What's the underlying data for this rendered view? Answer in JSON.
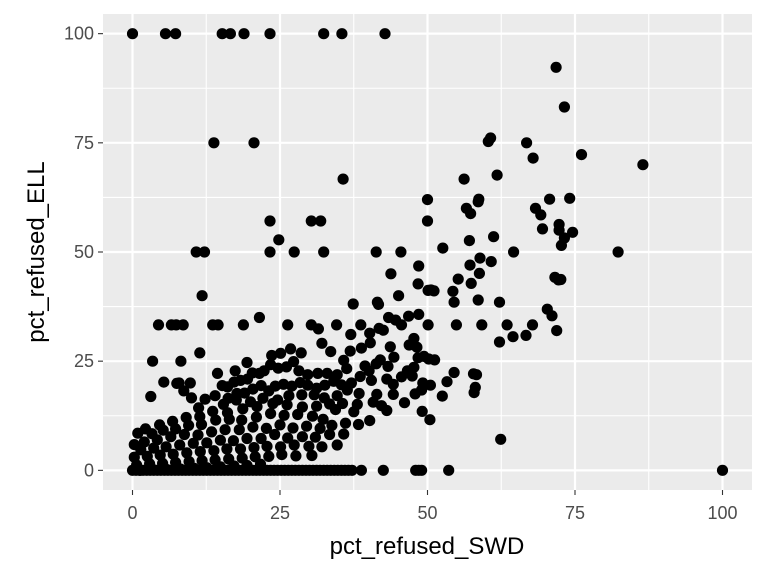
{
  "chart_data": {
    "type": "scatter",
    "title": "",
    "xlabel": "pct_refused_SWD",
    "ylabel": "pct_refused_ELL",
    "xlim": [
      -5,
      105
    ],
    "ylim": [
      -4.5,
      104.5
    ],
    "xticks": [
      0,
      25,
      50,
      75,
      100
    ],
    "xtick_labels": [
      "0",
      "25",
      "50",
      "75",
      "100"
    ],
    "yticks": [
      0,
      25,
      50,
      75,
      100
    ],
    "ytick_labels": [
      "0",
      "25",
      "50",
      "75",
      "100"
    ],
    "grid": true,
    "legend": "none",
    "colors": {
      "panel": "#ebebeb",
      "grid": "#ffffff",
      "point": "#000000",
      "tick": "#4d4d4d"
    },
    "points": [
      [
        0,
        100
      ],
      [
        5.6,
        100
      ],
      [
        7.3,
        100
      ],
      [
        15.2,
        100
      ],
      [
        16.6,
        100
      ],
      [
        18.9,
        100
      ],
      [
        23.3,
        100
      ],
      [
        32.4,
        100
      ],
      [
        35.5,
        100
      ],
      [
        42.8,
        100
      ],
      [
        71.8,
        92.3
      ],
      [
        73.2,
        83.2
      ],
      [
        13.8,
        75
      ],
      [
        20.6,
        75
      ],
      [
        60.3,
        75.3
      ],
      [
        60.7,
        76.1
      ],
      [
        66.8,
        75
      ],
      [
        67.9,
        71.5
      ],
      [
        76.1,
        72.3
      ],
      [
        86.5,
        70
      ],
      [
        35.7,
        66.7
      ],
      [
        56.2,
        66.7
      ],
      [
        61.8,
        67.6
      ],
      [
        56.6,
        60
      ],
      [
        58.6,
        61.5
      ],
      [
        58.7,
        62.1
      ],
      [
        50,
        62
      ],
      [
        70.7,
        62.1
      ],
      [
        74.1,
        62.3
      ],
      [
        68.3,
        60
      ],
      [
        69.2,
        58.5
      ],
      [
        73.2,
        53.2
      ],
      [
        57.3,
        58.8
      ],
      [
        72.3,
        56.3
      ],
      [
        72.3,
        55
      ],
      [
        69.5,
        55.3
      ],
      [
        74.6,
        54.5
      ],
      [
        23.3,
        57.1
      ],
      [
        30.3,
        57.1
      ],
      [
        31.9,
        57.1
      ],
      [
        50,
        57.1
      ],
      [
        72.7,
        51.5
      ],
      [
        12.2,
        50
      ],
      [
        10.8,
        50
      ],
      [
        23.3,
        50
      ],
      [
        27.4,
        50
      ],
      [
        32.4,
        50
      ],
      [
        41.3,
        50
      ],
      [
        45.5,
        50
      ],
      [
        52.6,
        50.9
      ],
      [
        57.1,
        52.6
      ],
      [
        61.2,
        53.5
      ],
      [
        64.6,
        50
      ],
      [
        82.3,
        50
      ],
      [
        24.8,
        52.8
      ],
      [
        60.8,
        47.8
      ],
      [
        58.9,
        48.6
      ],
      [
        57.2,
        47
      ],
      [
        58.8,
        45.1
      ],
      [
        43.8,
        45
      ],
      [
        48.5,
        46.8
      ],
      [
        71.6,
        44.2
      ],
      [
        72.2,
        43.6
      ],
      [
        72.6,
        43.7
      ],
      [
        55.2,
        43.8
      ],
      [
        57.4,
        42.8
      ],
      [
        54.3,
        41
      ],
      [
        48.4,
        42.7
      ],
      [
        50.1,
        41.2
      ],
      [
        50.6,
        41.3
      ],
      [
        51.1,
        41.1
      ],
      [
        45.1,
        40
      ],
      [
        11.8,
        40
      ],
      [
        62.2,
        38.5
      ],
      [
        54.5,
        38.5
      ],
      [
        58.6,
        39
      ],
      [
        41.5,
        38.5
      ],
      [
        41.7,
        38
      ],
      [
        37.4,
        38.1
      ],
      [
        70.3,
        36.9
      ],
      [
        71.1,
        35.4
      ],
      [
        21.5,
        35
      ],
      [
        46.8,
        35.3
      ],
      [
        48.5,
        35.7
      ],
      [
        44.6,
        34.4
      ],
      [
        43.4,
        35
      ],
      [
        41.8,
        32.5
      ],
      [
        42.5,
        32.1
      ],
      [
        45.6,
        33.3
      ],
      [
        50.1,
        33.3
      ],
      [
        54.9,
        33.3
      ],
      [
        59.2,
        33.3
      ],
      [
        63.5,
        33.3
      ],
      [
        67.8,
        33.3
      ],
      [
        71.9,
        32
      ],
      [
        64.5,
        30.6
      ],
      [
        62.2,
        29.4
      ],
      [
        66.7,
        30.9
      ],
      [
        38.7,
        33.3
      ],
      [
        40.2,
        31.4
      ],
      [
        37,
        31.1
      ],
      [
        34.6,
        33.3
      ],
      [
        31.5,
        32.4
      ],
      [
        30.3,
        33.3
      ],
      [
        26.3,
        33.3
      ],
      [
        18.8,
        33.3
      ],
      [
        13.6,
        33.3
      ],
      [
        14.5,
        33.3
      ],
      [
        8.6,
        33.3
      ],
      [
        6.6,
        33.3
      ],
      [
        4.4,
        33.3
      ],
      [
        7.4,
        33.3
      ],
      [
        40.3,
        29.2
      ],
      [
        43.7,
        28.3
      ],
      [
        46.9,
        28.7
      ],
      [
        48.2,
        28.2
      ],
      [
        47.7,
        30.2
      ],
      [
        38.8,
        28
      ],
      [
        36.9,
        27.3
      ],
      [
        35.8,
        25.2
      ],
      [
        33.6,
        27.2
      ],
      [
        32.1,
        29.1
      ],
      [
        28.6,
        26.9
      ],
      [
        26.8,
        27.8
      ],
      [
        25.1,
        26.8
      ],
      [
        23.6,
        26.3
      ],
      [
        23.4,
        24.2
      ],
      [
        19.4,
        24.7
      ],
      [
        17.4,
        22.8
      ],
      [
        14.4,
        22.2
      ],
      [
        11.4,
        26.9
      ],
      [
        3.4,
        25
      ],
      [
        8.2,
        25
      ],
      [
        42,
        25.3
      ],
      [
        44.3,
        25.9
      ],
      [
        48.4,
        25.8
      ],
      [
        49.4,
        26.1
      ],
      [
        50.2,
        25.5
      ],
      [
        51.2,
        25.3
      ],
      [
        47.7,
        23.6
      ],
      [
        46.6,
        22.8
      ],
      [
        43.3,
        23.8
      ],
      [
        41.3,
        24.4
      ],
      [
        40.1,
        22.8
      ],
      [
        39.4,
        23.9
      ],
      [
        36.3,
        23.3
      ],
      [
        34.7,
        21.9
      ],
      [
        33,
        22.2
      ],
      [
        31.4,
        22.2
      ],
      [
        29.7,
        21.9
      ],
      [
        28.2,
        22.8
      ],
      [
        27.3,
        24.9
      ],
      [
        26.1,
        23.7
      ],
      [
        24.7,
        23.4
      ],
      [
        22.3,
        22.8
      ],
      [
        21.5,
        22.2
      ],
      [
        20.3,
        22.3
      ],
      [
        19.5,
        20.9
      ],
      [
        18.3,
        20.6
      ],
      [
        17.2,
        20.2
      ],
      [
        16.1,
        19.1
      ],
      [
        15.2,
        19.4
      ],
      [
        14,
        17.1
      ],
      [
        12.3,
        16.3
      ],
      [
        11.2,
        14.3
      ],
      [
        10,
        16.6
      ],
      [
        8.7,
        18.2
      ],
      [
        7.5,
        19.9
      ],
      [
        5.3,
        20.2
      ],
      [
        3.1,
        16.9
      ],
      [
        9.8,
        20
      ],
      [
        7.9,
        20
      ],
      [
        57.8,
        22.1
      ],
      [
        58.3,
        21.9
      ],
      [
        53.3,
        20.3
      ],
      [
        54.5,
        22.4
      ],
      [
        49.2,
        20
      ],
      [
        47.4,
        21.6
      ],
      [
        45.6,
        21.4
      ],
      [
        44.2,
        19.7
      ],
      [
        43.1,
        20.9
      ],
      [
        40.5,
        20.6
      ],
      [
        38.6,
        21.5
      ],
      [
        37.1,
        20
      ],
      [
        35.4,
        19.6
      ],
      [
        34.1,
        20.4
      ],
      [
        32.6,
        19.5
      ],
      [
        31.2,
        18.8
      ],
      [
        29.7,
        19.5
      ],
      [
        28.4,
        20.1
      ],
      [
        27,
        19.3
      ],
      [
        25.6,
        19.7
      ],
      [
        24.2,
        19.3
      ],
      [
        23.1,
        18.2
      ],
      [
        21.8,
        19.4
      ],
      [
        20.4,
        18.6
      ],
      [
        19,
        17.7
      ],
      [
        17.7,
        17.6
      ],
      [
        16.2,
        16.5
      ],
      [
        57.9,
        17.8
      ],
      [
        58.1,
        19
      ],
      [
        47.9,
        17.5
      ],
      [
        49,
        18.4
      ],
      [
        50.5,
        19.5
      ],
      [
        52.5,
        17
      ],
      [
        44.2,
        17.4
      ],
      [
        41.4,
        17.4
      ],
      [
        38.4,
        17.6
      ],
      [
        36.4,
        18.4
      ],
      [
        34.7,
        17.1
      ],
      [
        32.5,
        16.6
      ],
      [
        30.8,
        17.3
      ],
      [
        28.7,
        17.3
      ],
      [
        26.5,
        17.1
      ],
      [
        24.6,
        16.1
      ],
      [
        22.1,
        16.5
      ],
      [
        20,
        15.7
      ],
      [
        17.6,
        16.1
      ],
      [
        15.4,
        15.1
      ],
      [
        46.1,
        15.5
      ],
      [
        40.8,
        15.6
      ],
      [
        38.1,
        15.1
      ],
      [
        35.6,
        15.3
      ],
      [
        33.4,
        15.2
      ],
      [
        31.2,
        14.7
      ],
      [
        28.8,
        14.5
      ],
      [
        26.2,
        15
      ],
      [
        23.8,
        15.3
      ],
      [
        21.1,
        14.6
      ],
      [
        18.7,
        14.1
      ],
      [
        16.1,
        13.2
      ],
      [
        13.6,
        13.5
      ],
      [
        11.4,
        12.3
      ],
      [
        9.1,
        12.1
      ],
      [
        6.8,
        11.2
      ],
      [
        4.6,
        10.4
      ],
      [
        2.2,
        9.5
      ],
      [
        0.9,
        8.5
      ],
      [
        50.4,
        11.6
      ],
      [
        49.1,
        13.5
      ],
      [
        43.1,
        13.7
      ],
      [
        42.2,
        14.8
      ],
      [
        37.5,
        13.4
      ],
      [
        34.4,
        13.9
      ],
      [
        32.3,
        11.7
      ],
      [
        30.5,
        12.4
      ],
      [
        28,
        12.8
      ],
      [
        25.7,
        12.6
      ],
      [
        23.4,
        13
      ],
      [
        21,
        12.2
      ],
      [
        18.5,
        11.5
      ],
      [
        16.4,
        11.7
      ],
      [
        14.1,
        11.5
      ],
      [
        11.7,
        10.5
      ],
      [
        9.5,
        10.3
      ],
      [
        7.3,
        9.5
      ],
      [
        5.2,
        9.2
      ],
      [
        3.3,
        8.4
      ],
      [
        36.1,
        10.8
      ],
      [
        38.3,
        10.5
      ],
      [
        40.2,
        11.4
      ],
      [
        33.8,
        10.3
      ],
      [
        31.8,
        9.6
      ],
      [
        29.5,
        10.1
      ],
      [
        27.2,
        9.7
      ],
      [
        25,
        10.4
      ],
      [
        22.7,
        9.6
      ],
      [
        20.4,
        9.9
      ],
      [
        18.1,
        9.3
      ],
      [
        15.7,
        9.3
      ],
      [
        13.4,
        8.8
      ],
      [
        11.1,
        8.1
      ],
      [
        8.8,
        8.2
      ],
      [
        6.5,
        7.7
      ],
      [
        4.2,
        7
      ],
      [
        2,
        6.5
      ],
      [
        0.3,
        5.9
      ],
      [
        62.4,
        7.1
      ],
      [
        35.8,
        8.3
      ],
      [
        33.4,
        8.2
      ],
      [
        31,
        7.6
      ],
      [
        28.8,
        7.7
      ],
      [
        26.3,
        7.4
      ],
      [
        24.1,
        8.2
      ],
      [
        21.8,
        7.3
      ],
      [
        19.4,
        7.3
      ],
      [
        17.1,
        6.8
      ],
      [
        14.9,
        6.9
      ],
      [
        12.6,
        6.3
      ],
      [
        10.3,
        6.2
      ],
      [
        8,
        5.8
      ],
      [
        5.7,
        5.4
      ],
      [
        3.6,
        5.1
      ],
      [
        1.4,
        4.7
      ],
      [
        34.7,
        5.8
      ],
      [
        32.1,
        5.4
      ],
      [
        29.9,
        5.5
      ],
      [
        27.4,
        5.8
      ],
      [
        25.1,
        5.4
      ],
      [
        22.8,
        5.5
      ],
      [
        20.6,
        5.2
      ],
      [
        18.3,
        4.9
      ],
      [
        16,
        4.9
      ],
      [
        13.8,
        4.5
      ],
      [
        11.5,
        4.3
      ],
      [
        9.2,
        4
      ],
      [
        6.9,
        3.7
      ],
      [
        4.7,
        3.5
      ],
      [
        2.5,
        3.2
      ],
      [
        0.3,
        3
      ],
      [
        30.4,
        3.4
      ],
      [
        27.7,
        3.3
      ],
      [
        25.3,
        3.6
      ],
      [
        23.1,
        3.2
      ],
      [
        20.8,
        3.1
      ],
      [
        18.6,
        2.8
      ],
      [
        16.3,
        2.6
      ],
      [
        14,
        2.4
      ],
      [
        11.8,
        2.2
      ],
      [
        9.6,
        2
      ],
      [
        7.3,
        1.8
      ],
      [
        5.1,
        1.6
      ],
      [
        2.9,
        1.5
      ],
      [
        0.7,
        1.2
      ],
      [
        21.7,
        1.4
      ],
      [
        19.4,
        1.1
      ],
      [
        17.2,
        1
      ],
      [
        14.9,
        0.8
      ],
      [
        12.6,
        0.6
      ],
      [
        10.4,
        0.5
      ],
      [
        8.1,
        0.3
      ],
      [
        5.8,
        0.2
      ],
      [
        3.6,
        0.1
      ],
      [
        1.3,
        0
      ],
      [
        0,
        0
      ],
      [
        0.6,
        0
      ],
      [
        1.2,
        0
      ],
      [
        1.8,
        0
      ],
      [
        2.4,
        0
      ],
      [
        3,
        0
      ],
      [
        3.6,
        0
      ],
      [
        4.2,
        0
      ],
      [
        4.8,
        0
      ],
      [
        5.4,
        0
      ],
      [
        6,
        0
      ],
      [
        6.6,
        0
      ],
      [
        7.2,
        0
      ],
      [
        7.8,
        0
      ],
      [
        8.4,
        0
      ],
      [
        9,
        0
      ],
      [
        9.6,
        0
      ],
      [
        10.2,
        0
      ],
      [
        10.8,
        0
      ],
      [
        11.4,
        0
      ],
      [
        12,
        0
      ],
      [
        12.6,
        0
      ],
      [
        13.2,
        0
      ],
      [
        13.8,
        0
      ],
      [
        14.4,
        0
      ],
      [
        15,
        0
      ],
      [
        15.6,
        0
      ],
      [
        16.2,
        0
      ],
      [
        16.8,
        0
      ],
      [
        17.4,
        0
      ],
      [
        18,
        0
      ],
      [
        18.6,
        0
      ],
      [
        19.2,
        0
      ],
      [
        19.8,
        0
      ],
      [
        20.4,
        0
      ],
      [
        21,
        0
      ],
      [
        21.6,
        0
      ],
      [
        22.2,
        0
      ],
      [
        22.8,
        0
      ],
      [
        23.4,
        0
      ],
      [
        24,
        0
      ],
      [
        24.6,
        0
      ],
      [
        25.2,
        0
      ],
      [
        25.8,
        0
      ],
      [
        26.4,
        0
      ],
      [
        27,
        0
      ],
      [
        27.6,
        0
      ],
      [
        28.2,
        0
      ],
      [
        28.8,
        0
      ],
      [
        29.4,
        0
      ],
      [
        30,
        0
      ],
      [
        30.6,
        0
      ],
      [
        31.2,
        0
      ],
      [
        31.8,
        0
      ],
      [
        32.4,
        0
      ],
      [
        33,
        0
      ],
      [
        33.6,
        0
      ],
      [
        34.2,
        0
      ],
      [
        34.8,
        0
      ],
      [
        35.4,
        0
      ],
      [
        36,
        0
      ],
      [
        36.6,
        0
      ],
      [
        37.2,
        0
      ],
      [
        38.8,
        0
      ],
      [
        42.5,
        0
      ],
      [
        48,
        0
      ],
      [
        48.5,
        0
      ],
      [
        49,
        0
      ],
      [
        53.6,
        0
      ],
      [
        100,
        0
      ]
    ]
  }
}
